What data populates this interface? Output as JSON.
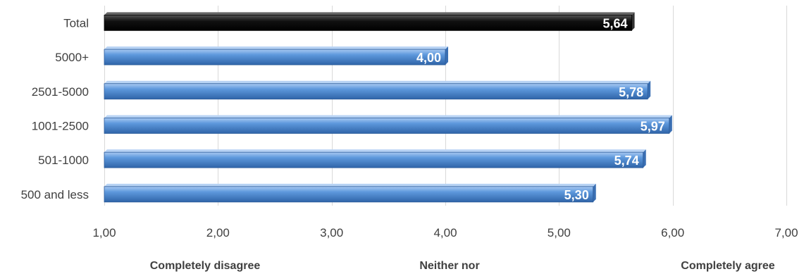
{
  "chart_data": {
    "type": "bar",
    "orientation": "horizontal",
    "categories": [
      "Total",
      "5000+",
      "2501-5000",
      "1001-2500",
      "501-1000",
      "500 and less"
    ],
    "values": [
      5.64,
      4.0,
      5.78,
      5.97,
      5.74,
      5.3
    ],
    "value_labels": [
      "5,64",
      "4,00",
      "5,78",
      "5,97",
      "5,74",
      "5,30"
    ],
    "xlim": [
      1,
      7
    ],
    "x_ticks": [
      1,
      2,
      3,
      4,
      5,
      6,
      7
    ],
    "x_tick_labels": [
      "1,00",
      "2,00",
      "3,00",
      "4,00",
      "5,00",
      "6,00",
      "7,00"
    ],
    "grid": true,
    "highlight_category": "Total",
    "colors": {
      "bar": "#4f8fd9",
      "bar_highlight": "#111111",
      "grid": "#d9d9d9",
      "text": "#404040"
    }
  },
  "scale_anchors": {
    "left": "Completely disagree",
    "middle": "Neither nor",
    "right": "Completely agree"
  }
}
